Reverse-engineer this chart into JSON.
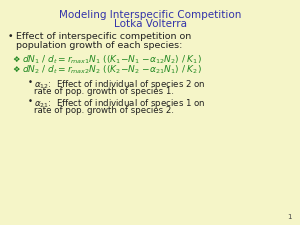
{
  "background_color": "#f5f5c8",
  "title_line1": "Modeling Interspecific Competition",
  "title_line2": "Lotka Volterra",
  "title_color": "#3333aa",
  "title_fontsize": 7.5,
  "bullet_color": "#222222",
  "bullet_fontsize": 6.8,
  "eq_color": "#228822",
  "eq_fontsize": 6.5,
  "sub_bullet_fontsize": 6.2,
  "sub_bullet_color": "#222222",
  "page_number": "1",
  "page_number_color": "#444444",
  "page_number_fontsize": 5.0
}
